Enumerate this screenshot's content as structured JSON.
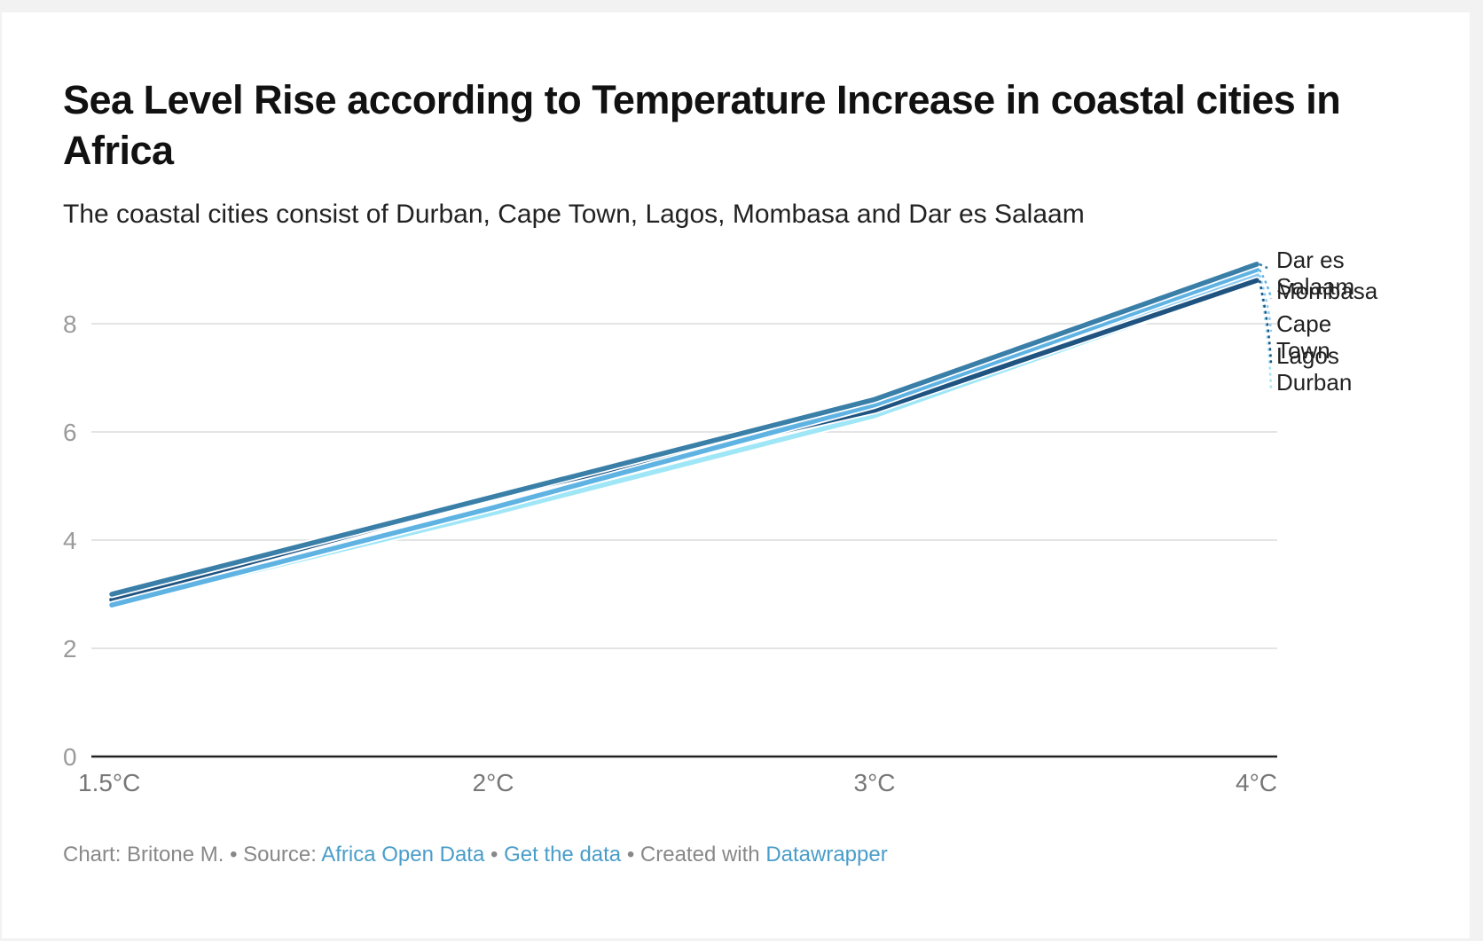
{
  "chart_data": {
    "type": "line",
    "title": "Sea Level Rise according to Temperature Increase in coastal cities in Africa",
    "subtitle": "The coastal cities consist of Durban, Cape Town, Lagos, Mombasa and Dar es Salaam",
    "xlabel": "",
    "ylabel": "",
    "categories": [
      "1.5°C",
      "2°C",
      "3°C",
      "4°C"
    ],
    "x": [
      1.5,
      2,
      3,
      4
    ],
    "ylim": [
      0,
      9.3
    ],
    "yticks": [
      0,
      2,
      4,
      6,
      8
    ],
    "grid": true,
    "legend": "direct-labels-right",
    "series": [
      {
        "name": "Durban",
        "label_lines": [
          "Durban"
        ],
        "color": "#9fe6f7",
        "values": [
          2.8,
          4.5,
          6.3,
          8.8
        ]
      },
      {
        "name": "Cape Town",
        "label_lines": [
          "Cape",
          "Town"
        ],
        "color": "#8ccbf0",
        "values": [
          2.8,
          4.6,
          6.5,
          8.9
        ]
      },
      {
        "name": "Lagos",
        "label_lines": [
          "Lagos"
        ],
        "color": "#1f5380",
        "values": [
          2.9,
          4.8,
          6.4,
          8.8
        ]
      },
      {
        "name": "Mombasa",
        "label_lines": [
          "Mombasa"
        ],
        "color": "#5fb3e3",
        "values": [
          2.8,
          4.6,
          6.5,
          9.0
        ]
      },
      {
        "name": "Dar es Salaam",
        "label_lines": [
          "Dar es",
          "Salaam"
        ],
        "color": "#3a7fa8",
        "values": [
          3.0,
          4.8,
          6.6,
          9.1
        ]
      }
    ]
  },
  "footer": {
    "chart_by": "Chart: Britone M.",
    "sep1": " • ",
    "source_prefix": "Source: ",
    "source_link": "Africa Open Data",
    "sep2": " • ",
    "get_data": "Get the data",
    "sep3": " • ",
    "created_prefix": "Created with ",
    "created_link": "Datawrapper"
  }
}
